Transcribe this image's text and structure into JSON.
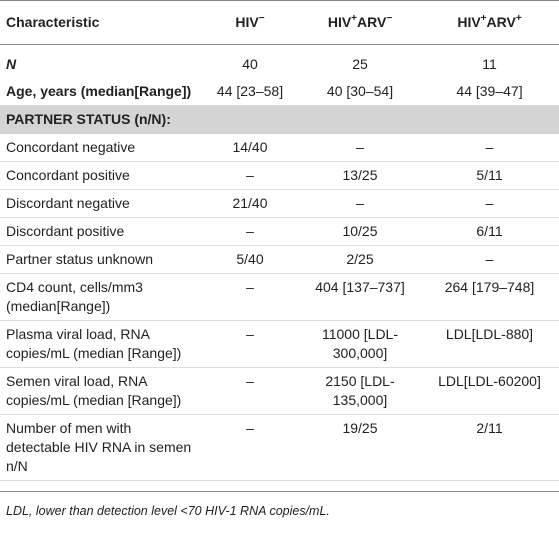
{
  "table": {
    "columns": [
      [
        {
          "text": "Characteristic",
          "sup": false
        }
      ],
      [
        {
          "text": "HIV",
          "sup": false
        },
        {
          "text": "−",
          "sup": true
        }
      ],
      [
        {
          "text": "HIV",
          "sup": false
        },
        {
          "text": "+",
          "sup": true
        },
        {
          "text": "ARV",
          "sup": false
        },
        {
          "text": "−",
          "sup": true
        }
      ],
      [
        {
          "text": "HIV",
          "sup": false
        },
        {
          "text": "+",
          "sup": true
        },
        {
          "text": "ARV",
          "sup": false
        },
        {
          "text": "+",
          "sup": true
        }
      ]
    ],
    "top_rows": [
      [
        "N",
        "40",
        "25",
        "11"
      ],
      [
        "Age, years (median[Range])",
        "44 [23–58]",
        "40 [30–54]",
        "44 [39–47]"
      ]
    ],
    "section": "PARTNER STATUS (n/N):",
    "rows": [
      [
        "Concordant negative",
        "14/40",
        "–",
        "–"
      ],
      [
        "Concordant positive",
        "–",
        "13/25",
        "5/11"
      ],
      [
        "Discordant negative",
        "21/40",
        "–",
        "–"
      ],
      [
        "Discordant positive",
        "–",
        "10/25",
        "6/11"
      ],
      [
        "Partner status unknown",
        "5/40",
        "2/25",
        "–"
      ],
      [
        "CD4 count, cells/mm3 (median[Range])",
        "–",
        "404 [137–737]",
        "264 [179–748]"
      ],
      [
        "Plasma viral load, RNA copies/mL (median [Range])",
        "–",
        "11000 [LDL-300,000]",
        "LDL[LDL-880]"
      ],
      [
        "Semen viral load, RNA copies/mL (median [Range])",
        "–",
        "2150 [LDL-135,000]",
        "LDL[LDL-60200]"
      ],
      [
        "Number of men with detectable HIV RNA in semen n/N",
        "–",
        "19/25",
        "2/11"
      ]
    ],
    "footnote": "LDL, lower than detection level <70 HIV-1 RNA copies/mL."
  }
}
